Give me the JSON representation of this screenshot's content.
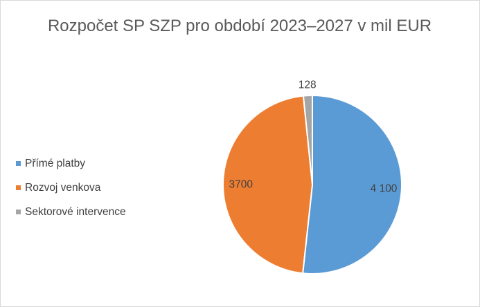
{
  "chart_data": {
    "type": "pie",
    "title": "Rozpočet  SP SZP pro období 2023–2027 v mil EUR",
    "categories": [
      "Přímé platby",
      "Rozvoj venkova",
      "Sektorové intervence"
    ],
    "values": [
      4100,
      3700,
      128
    ],
    "data_labels": [
      "4 100",
      "3700",
      "128"
    ],
    "colors": [
      "#5b9bd5",
      "#ed7d31",
      "#a5a5a5"
    ],
    "legend": "left",
    "grid": false
  }
}
